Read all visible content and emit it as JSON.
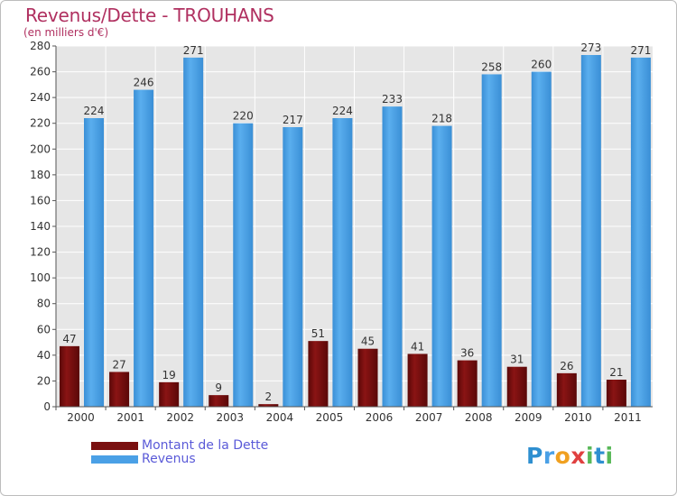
{
  "chart_data": {
    "type": "bar",
    "title": "Revenus/Dette - TROUHANS",
    "subtitle": "(en milliers d'€)",
    "categories": [
      "2000",
      "2001",
      "2002",
      "2003",
      "2004",
      "2005",
      "2006",
      "2007",
      "2008",
      "2009",
      "2010",
      "2011"
    ],
    "series": [
      {
        "name": "Montant de la Dette",
        "color": "#7a1010",
        "values": [
          47,
          27,
          19,
          9,
          2,
          51,
          45,
          41,
          36,
          31,
          26,
          21
        ]
      },
      {
        "name": "Revenus",
        "color": "#4aa0e6",
        "values": [
          224,
          246,
          271,
          220,
          217,
          224,
          233,
          218,
          258,
          260,
          273,
          271
        ]
      }
    ],
    "ylim": [
      0,
      280
    ],
    "yticks": [
      0,
      20,
      40,
      60,
      80,
      100,
      120,
      140,
      160,
      180,
      200,
      220,
      240,
      260,
      280
    ],
    "grid": true,
    "legend": "bottom-left",
    "xlabel": "",
    "ylabel": ""
  },
  "brand": {
    "text": "Proxiti",
    "letters": [
      {
        "ch": "P",
        "color": "#2e8fd0"
      },
      {
        "ch": "r",
        "color": "#4aa0e6"
      },
      {
        "ch": "o",
        "color": "#f0a020"
      },
      {
        "ch": "x",
        "color": "#e04040"
      },
      {
        "ch": "i",
        "color": "#58b858"
      },
      {
        "ch": "t",
        "color": "#2e8fd0"
      },
      {
        "ch": "i",
        "color": "#58b858"
      }
    ]
  }
}
